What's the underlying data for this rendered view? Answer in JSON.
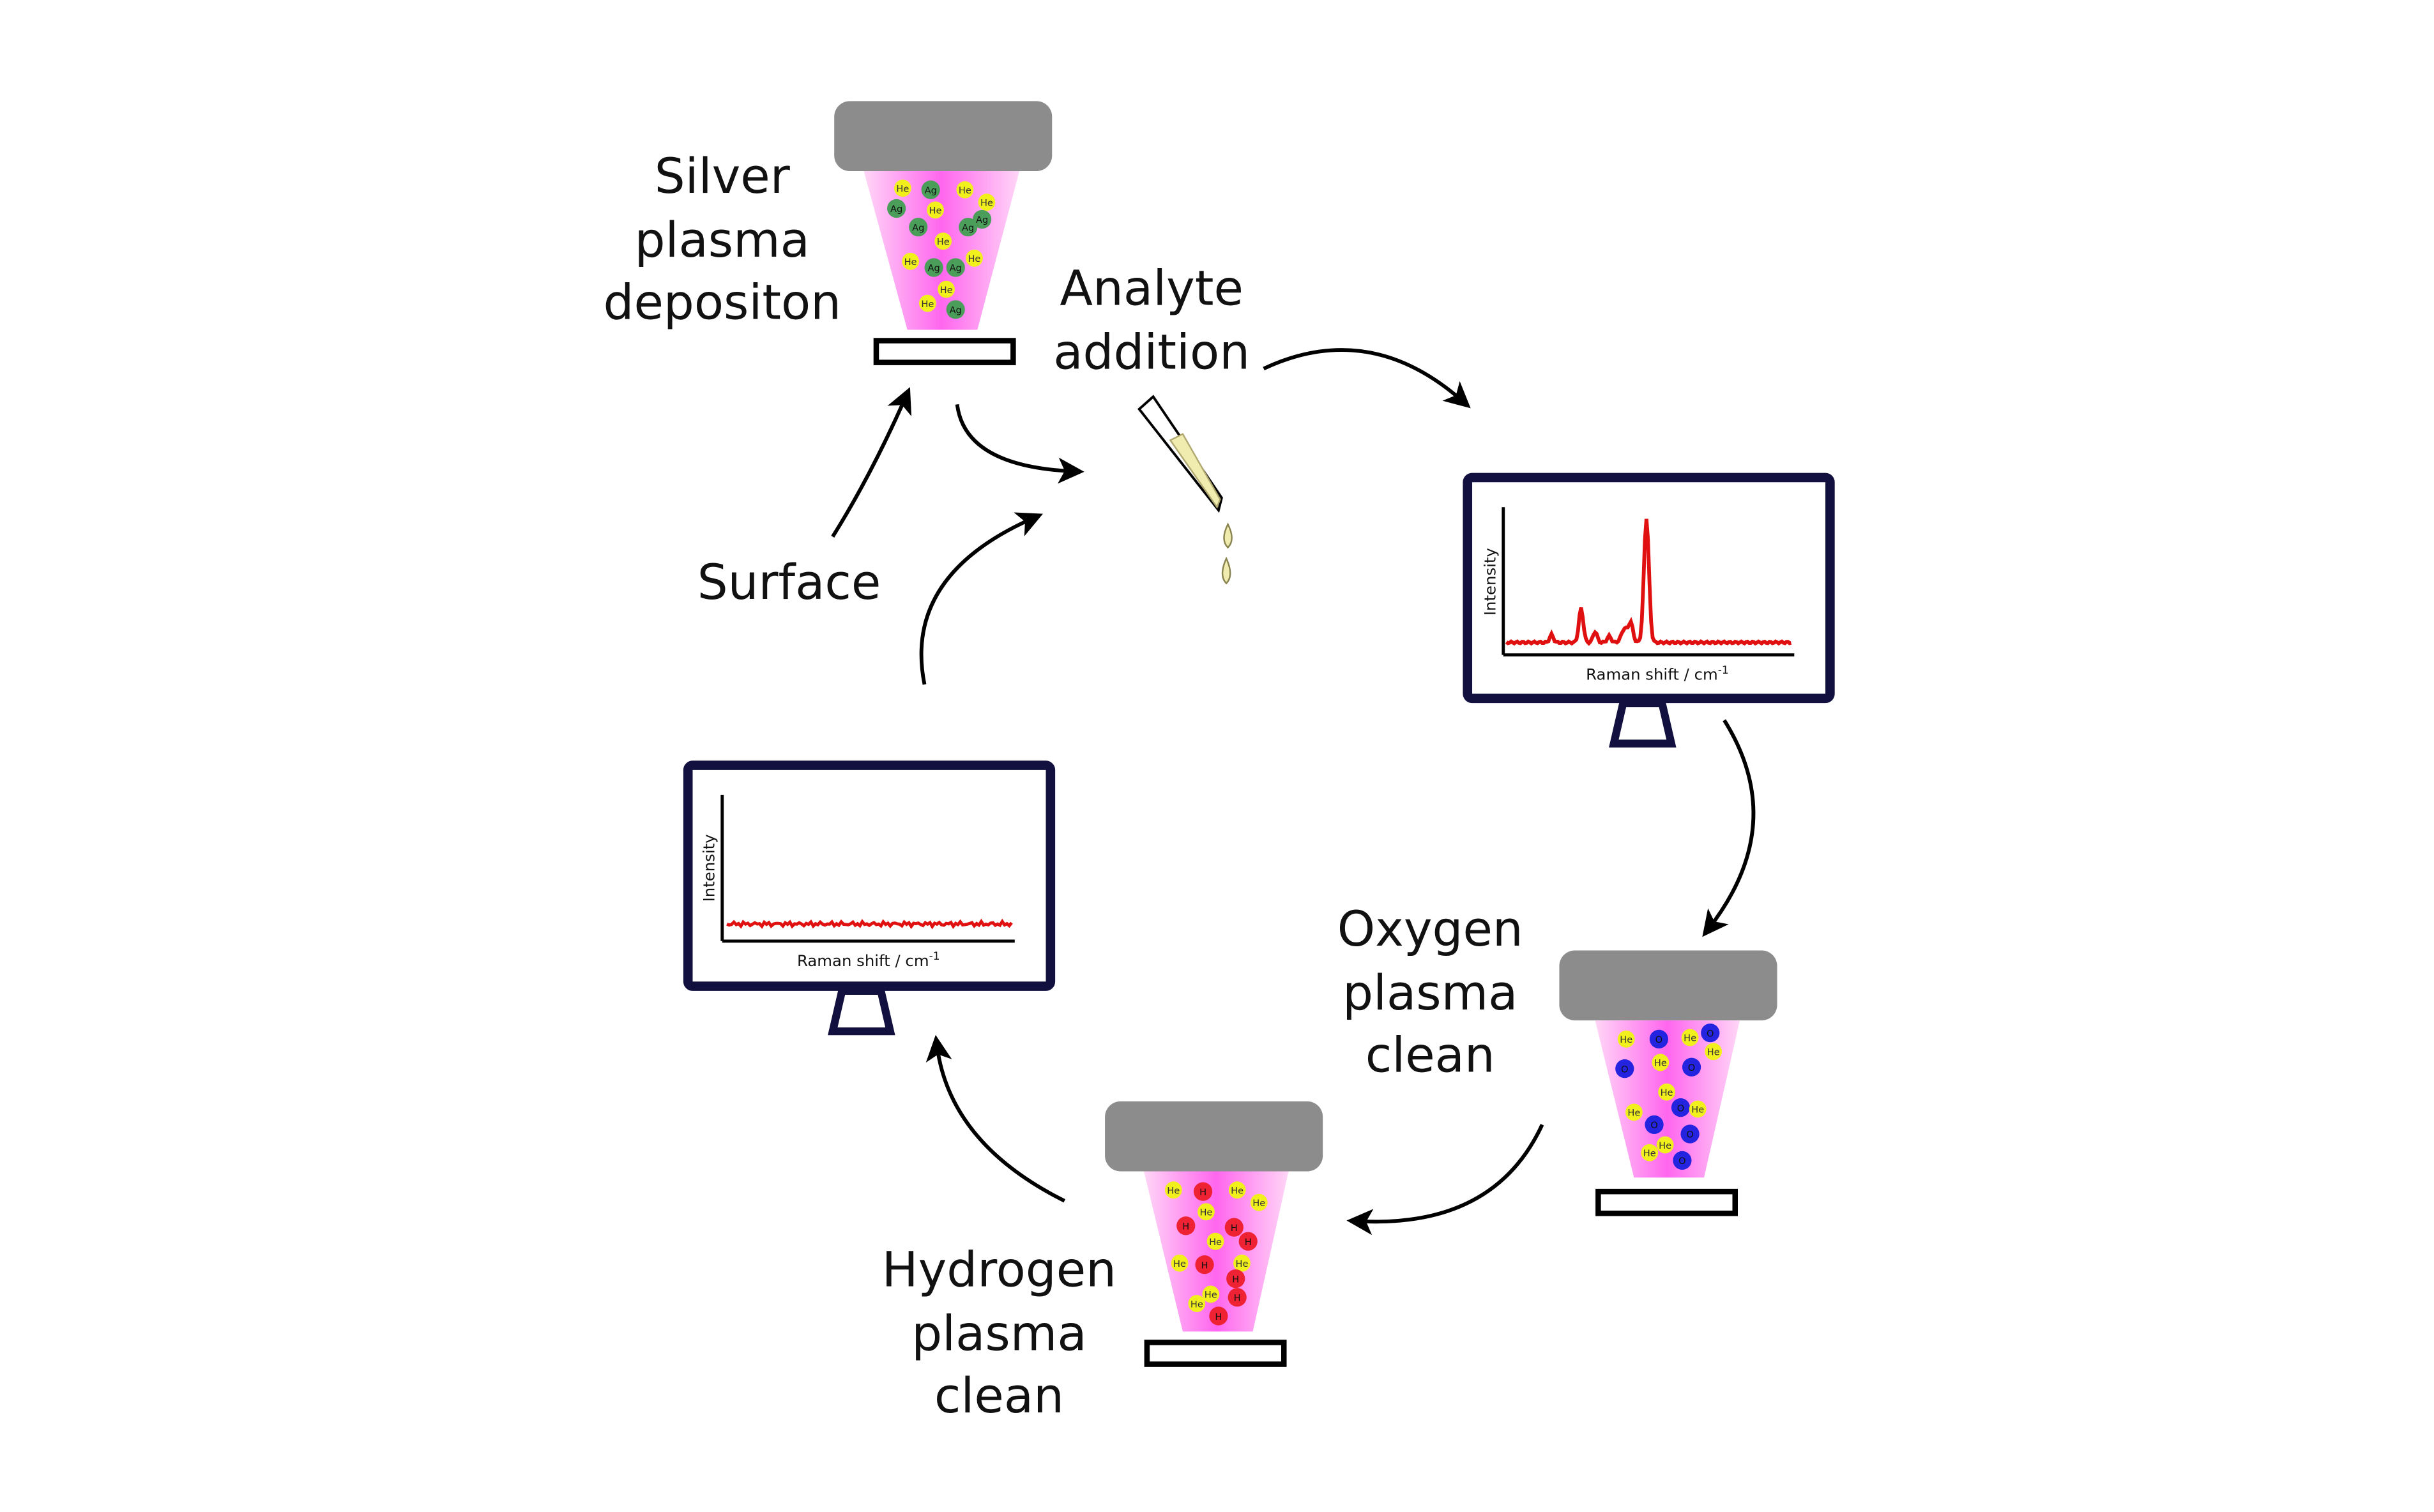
{
  "labels": {
    "silver": [
      "Silver",
      "plasma",
      "depositon"
    ],
    "analyte": [
      "Analyte",
      "addition"
    ],
    "surface": "Surface",
    "oxygen": [
      "Oxygen",
      "plasma",
      "clean"
    ],
    "hydrogen": [
      "Hydrogen",
      "plasma",
      "clean"
    ]
  },
  "plot_axes": {
    "ylabel": "Intensity",
    "xlabel": "Raman shift / cm",
    "xlabel_superscript": "-1"
  },
  "atoms": {
    "helium": "He",
    "silver": "Ag",
    "oxygen": "O",
    "hydrogen": "H"
  },
  "colors": {
    "monitor_frame": "#12103e",
    "electrode": "#8c8c8c",
    "plasma": "#ff66ee",
    "spectrum": "#e01010",
    "helium_atom": "#f2f01c",
    "silver_atom": "#4a9e5a",
    "oxygen_atom": "#2424e0",
    "hydrogen_atom": "#ee2233"
  }
}
